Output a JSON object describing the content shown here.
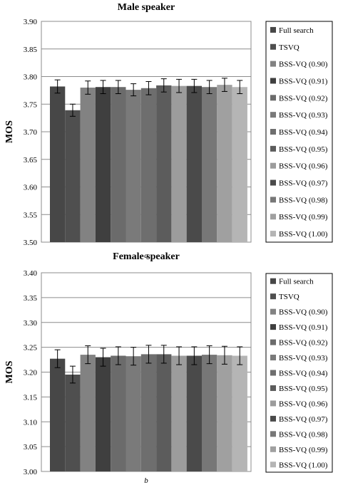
{
  "chart_data": [
    {
      "type": "bar",
      "title": "Male speaker",
      "caption": "a",
      "ylabel": "MOS",
      "xlabel": "",
      "ylim": [
        3.5,
        3.9
      ],
      "yticks": [
        "3.50",
        "3.55",
        "3.60",
        "3.65",
        "3.70",
        "3.75",
        "3.80",
        "3.85",
        "3.90"
      ],
      "grid": true,
      "legend_position": "right",
      "series": [
        {
          "name": "Full search",
          "value": 3.782,
          "error": 0.012,
          "color": "#474747"
        },
        {
          "name": "TSVQ",
          "value": 3.739,
          "error": 0.011,
          "color": "#4f4f4f"
        },
        {
          "name": "BSS-VQ (0.90)",
          "value": 3.78,
          "error": 0.012,
          "color": "#828282"
        },
        {
          "name": "BSS-VQ (0.91)",
          "value": 3.781,
          "error": 0.012,
          "color": "#3f3f3f"
        },
        {
          "name": "BSS-VQ (0.92)",
          "value": 3.781,
          "error": 0.012,
          "color": "#6b6b6b"
        },
        {
          "name": "BSS-VQ (0.93)",
          "value": 3.776,
          "error": 0.011,
          "color": "#7a7a7a"
        },
        {
          "name": "BSS-VQ (0.94)",
          "value": 3.779,
          "error": 0.012,
          "color": "#6e6e6e"
        },
        {
          "name": "BSS-VQ (0.95)",
          "value": 3.784,
          "error": 0.012,
          "color": "#5c5c5c"
        },
        {
          "name": "BSS-VQ (0.96)",
          "value": 3.783,
          "error": 0.012,
          "color": "#9c9c9c"
        },
        {
          "name": "BSS-VQ (0.97)",
          "value": 3.783,
          "error": 0.012,
          "color": "#4a4a4a"
        },
        {
          "name": "BSS-VQ (0.98)",
          "value": 3.781,
          "error": 0.012,
          "color": "#777777"
        },
        {
          "name": "BSS-VQ (0.99)",
          "value": 3.785,
          "error": 0.012,
          "color": "#a0a0a0"
        },
        {
          "name": "BSS-VQ (1.00)",
          "value": 3.781,
          "error": 0.012,
          "color": "#b5b5b5"
        }
      ]
    },
    {
      "type": "bar",
      "title": "Female speaker",
      "caption": "b",
      "ylabel": "MOS",
      "xlabel": "",
      "ylim": [
        3.0,
        3.4
      ],
      "yticks": [
        "3.00",
        "3.05",
        "3.10",
        "3.15",
        "3.20",
        "3.25",
        "3.30",
        "3.35",
        "3.40"
      ],
      "grid": true,
      "legend_position": "right",
      "series": [
        {
          "name": "Full search",
          "value": 3.227,
          "error": 0.018,
          "color": "#474747"
        },
        {
          "name": "TSVQ",
          "value": 3.195,
          "error": 0.017,
          "color": "#4f4f4f"
        },
        {
          "name": "BSS-VQ (0.90)",
          "value": 3.235,
          "error": 0.018,
          "color": "#828282"
        },
        {
          "name": "BSS-VQ (0.91)",
          "value": 3.23,
          "error": 0.018,
          "color": "#3f3f3f"
        },
        {
          "name": "BSS-VQ (0.92)",
          "value": 3.233,
          "error": 0.018,
          "color": "#6b6b6b"
        },
        {
          "name": "BSS-VQ (0.93)",
          "value": 3.232,
          "error": 0.018,
          "color": "#7a7a7a"
        },
        {
          "name": "BSS-VQ (0.94)",
          "value": 3.236,
          "error": 0.018,
          "color": "#6e6e6e"
        },
        {
          "name": "BSS-VQ (0.95)",
          "value": 3.236,
          "error": 0.018,
          "color": "#5c5c5c"
        },
        {
          "name": "BSS-VQ (0.96)",
          "value": 3.233,
          "error": 0.018,
          "color": "#9c9c9c"
        },
        {
          "name": "BSS-VQ (0.97)",
          "value": 3.233,
          "error": 0.018,
          "color": "#4a4a4a"
        },
        {
          "name": "BSS-VQ (0.98)",
          "value": 3.235,
          "error": 0.018,
          "color": "#777777"
        },
        {
          "name": "BSS-VQ (0.99)",
          "value": 3.234,
          "error": 0.018,
          "color": "#a0a0a0"
        },
        {
          "name": "BSS-VQ (1.00)",
          "value": 3.233,
          "error": 0.018,
          "color": "#b5b5b5"
        }
      ]
    }
  ]
}
